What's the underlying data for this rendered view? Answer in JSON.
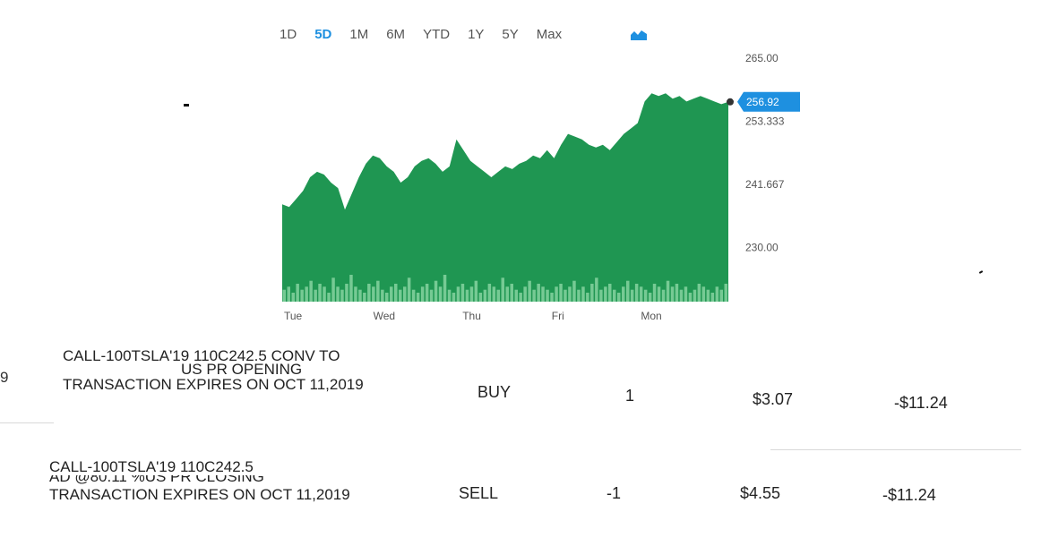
{
  "range_selector": {
    "options": [
      "1D",
      "5D",
      "1M",
      "6M",
      "YTD",
      "1Y",
      "5Y",
      "Max"
    ],
    "active": "5D",
    "chart_type_icon": "area-chart-icon",
    "active_color": "#1e90e0"
  },
  "chart_data": {
    "type": "area",
    "xlabel": "",
    "ylabel": "",
    "x_tick_labels": [
      "Tue",
      "Wed",
      "Thu",
      "Fri",
      "Mon"
    ],
    "y_tick_labels": [
      "265.00",
      "256.92",
      "253.333",
      "241.667",
      "230.00"
    ],
    "ylim": [
      220,
      265
    ],
    "current_price": 256.92,
    "current_price_label": "256.92",
    "grid": false,
    "area_color": "#1f9652",
    "price_tag_color": "#1e90e0",
    "series": [
      {
        "values": [
          238.0,
          237.5,
          239.0,
          240.5,
          243.0,
          244.0,
          243.5,
          242.0,
          241.0,
          237.0,
          240.0,
          243.0,
          245.5,
          247.0,
          246.5,
          245.0,
          244.0,
          242.0,
          243.0,
          245.0,
          246.0,
          246.5,
          245.5,
          244.0,
          245.0,
          250.0,
          248.0,
          246.0,
          245.0,
          244.0,
          243.0,
          244.0,
          245.0,
          244.5,
          245.5,
          246.0,
          247.0,
          246.5,
          248.0,
          246.5,
          249.0,
          251.0,
          250.5,
          250.0,
          249.0,
          248.5,
          249.0,
          248.0,
          249.5,
          251.0,
          252.0,
          253.0,
          257.0,
          258.5,
          258.0,
          258.5,
          257.5,
          258.0,
          257.0,
          257.5,
          258.0,
          257.5,
          257.0,
          256.5,
          256.92
        ]
      }
    ],
    "volume_color": "#9be0b0",
    "volume": [
      4,
      5,
      3,
      6,
      4,
      5,
      7,
      4,
      6,
      5,
      3,
      8,
      5,
      4,
      6,
      9,
      5,
      4,
      3,
      6,
      5,
      7,
      4,
      3,
      5,
      6,
      4,
      5,
      8,
      4,
      3,
      5,
      6,
      4,
      7,
      5,
      9,
      4,
      3,
      5,
      6,
      4,
      5,
      7,
      3,
      4,
      6,
      5,
      4,
      8,
      5,
      6,
      4,
      3,
      5,
      7,
      4,
      6,
      5,
      4,
      3,
      5,
      6,
      4,
      5,
      7,
      4,
      5,
      3,
      6,
      8,
      4,
      5,
      6,
      4,
      3,
      5,
      7,
      4,
      6,
      5,
      4,
      3,
      6,
      5,
      4,
      7,
      5,
      6,
      4,
      5,
      3,
      4,
      6,
      5,
      4,
      3,
      5,
      4,
      6
    ]
  },
  "transactions": {
    "left_fragment": "9",
    "rows": [
      {
        "desc_line1": "CALL-100TSLA'19 110C242.5 CONV TO",
        "desc_line2": "US PR OPENING",
        "desc_line3": "TRANSACTION EXPIRES ON OCT 11,2019",
        "action": "BUY",
        "quantity": "1",
        "price": "$3.07",
        "amount": "-$11.24"
      },
      {
        "desc_line1": "CALL-100TSLA'19 110C242.5",
        "desc_line2": "AD @80.11 %US PR CLOSING",
        "desc_line3": "TRANSACTION EXPIRES ON OCT 11,2019",
        "action": "SELL",
        "quantity": "-1",
        "price": "$4.55",
        "amount": "-$11.24"
      }
    ]
  }
}
